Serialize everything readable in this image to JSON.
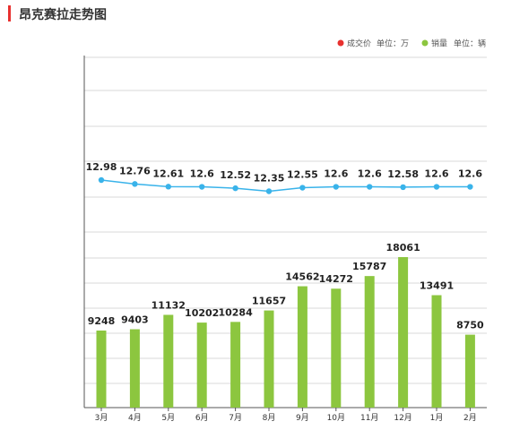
{
  "page": {
    "title": "昂克赛拉走势图"
  },
  "colors": {
    "accent": "#e8312f",
    "price": "#39b3ea",
    "sales": "#8cc63f",
    "grid": "#d9d9d9"
  },
  "chart_data": {
    "type": "bar",
    "title": "昂克赛拉走势图",
    "categories": [
      "3月",
      "4月",
      "5月",
      "6月",
      "7月",
      "8月",
      "9月",
      "10月",
      "11月",
      "12月",
      "1月",
      "2月"
    ],
    "legend": {
      "position": "top-right",
      "items": [
        {
          "marker": "red-dot",
          "name": "成交价",
          "unit": "单位：万"
        },
        {
          "marker": "green-dot",
          "name": "销量",
          "unit": "单位：辆"
        }
      ]
    },
    "series": [
      {
        "type": "line",
        "values": [
          12.98,
          12.76,
          12.61,
          12.6,
          12.52,
          12.35,
          12.55,
          12.6,
          12.6,
          12.58,
          12.6,
          12.6
        ]
      },
      {
        "type": "bar",
        "values": [
          9248,
          9403,
          11132,
          10202,
          10284,
          11657,
          14562,
          14272,
          15787,
          18061,
          13491,
          8750
        ]
      }
    ],
    "grid": true
  }
}
